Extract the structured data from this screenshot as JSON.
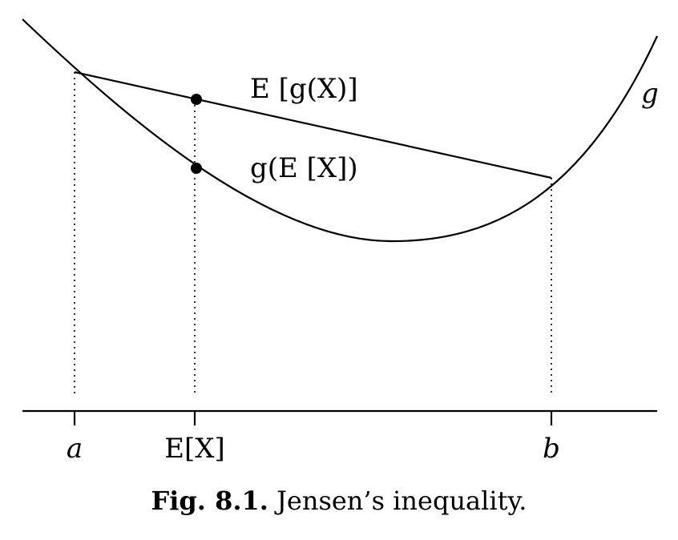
{
  "figure": {
    "labels": {
      "curve_name": "g",
      "upper_point": "E [g(X)]",
      "lower_point": "g(E [X])"
    },
    "axis_ticks": [
      "a",
      "E[X]",
      "b"
    ]
  },
  "caption": {
    "number": "Fig. 8.1.",
    "text": "Jensen’s inequality."
  }
}
